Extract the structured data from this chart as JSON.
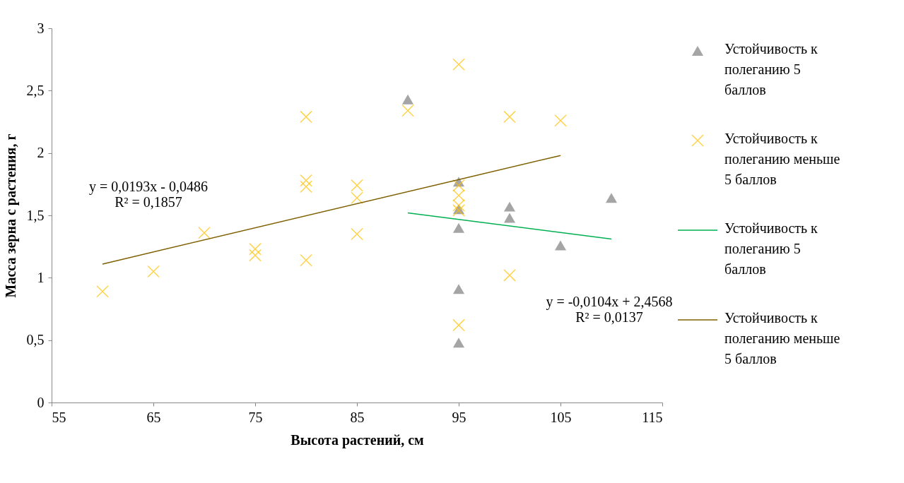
{
  "chart_data": {
    "type": "scatter",
    "xlabel": "Высота растений, см",
    "ylabel": "Масса зерна с растения, г",
    "xlim": [
      55,
      115
    ],
    "xticks": [
      55,
      65,
      75,
      85,
      95,
      105,
      115
    ],
    "ylim": [
      0,
      3
    ],
    "yticks": [
      0,
      {
        "value": 0.5,
        "label": "0,5"
      },
      1,
      {
        "value": 1.5,
        "label": "1,5"
      },
      2,
      {
        "value": 2.5,
        "label": "2,5"
      },
      3
    ],
    "grid": false,
    "legend": "right",
    "series": [
      {
        "name": "Устойчивость к полеганию 5 баллов",
        "marker": "triangle",
        "color": "#a5a5a5",
        "x": [
          90,
          95,
          95,
          95,
          95,
          95,
          100,
          100,
          105,
          110
        ],
        "values": [
          2.43,
          1.77,
          1.55,
          1.4,
          0.91,
          0.48,
          1.57,
          1.48,
          1.26,
          1.64
        ]
      },
      {
        "name": "Устойчивость к полеганию меньше 5 баллов",
        "marker": "cross",
        "color": "#ffc000",
        "x": [
          60,
          65,
          70,
          75,
          75,
          80,
          80,
          80,
          80,
          85,
          85,
          85,
          90,
          95,
          95,
          95,
          95,
          95,
          95,
          100,
          100,
          105
        ],
        "values": [
          0.89,
          1.05,
          1.36,
          1.23,
          1.18,
          2.29,
          1.78,
          1.73,
          1.14,
          1.74,
          1.64,
          1.35,
          2.34,
          2.71,
          1.74,
          1.66,
          1.58,
          1.54,
          0.62,
          2.29,
          1.02,
          2.26
        ]
      },
      {
        "name": "Устойчивость к полеганию 5 баллов",
        "type": "line",
        "color": "#00b050",
        "x": [
          90,
          110
        ],
        "values": [
          1.52,
          1.31
        ]
      },
      {
        "name": "Устойчивость к полеганию меньше 5 баллов",
        "type": "line",
        "color": "#7f6000",
        "x": [
          60,
          105
        ],
        "values": [
          1.11,
          1.98
        ]
      }
    ],
    "annotations": [
      "y = 0,0193x - 0,0486\nR² = 0,1857",
      "y = -0,0104x + 2,4568\nR² = 0,0137"
    ]
  }
}
